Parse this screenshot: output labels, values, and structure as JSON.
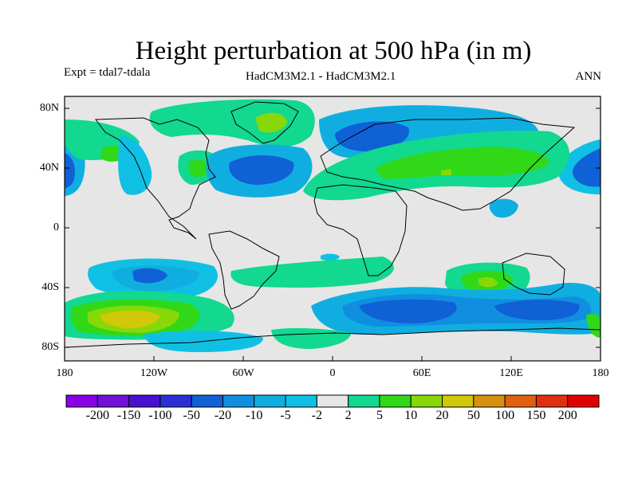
{
  "title": "Height perturbation at 500 hPa (in m)",
  "expt_label": "Expt = tdal7-tdala",
  "model_label": "HadCM3M2.1 - HadCM3M2.1",
  "season_label": "ANN",
  "lat_ticks": [
    "80N",
    "40N",
    "0",
    "40S",
    "80S"
  ],
  "lon_ticks": [
    "180",
    "120W",
    "60W",
    "0",
    "60E",
    "120E",
    "180"
  ],
  "colorbar": {
    "labels": [
      "-200",
      "-150",
      "-100",
      "-50",
      "-20",
      "-10",
      "-5",
      "-2",
      "2",
      "5",
      "10",
      "20",
      "50",
      "100",
      "150",
      "200"
    ],
    "colors": [
      "#8a00e6",
      "#7010d8",
      "#4a10d0",
      "#2a2fd6",
      "#1060d6",
      "#108ee0",
      "#10aee0",
      "#10c0e4",
      "#e6e6e6",
      "#12d890",
      "#30d818",
      "#88d808",
      "#d0c808",
      "#d89010",
      "#e06010",
      "#e03010",
      "#e00000"
    ]
  },
  "fill_colors": {
    "background": "#e6e6e6",
    "light_blue": "#10c0e4",
    "mid_blue": "#10aee0",
    "blue": "#108ee0",
    "dark_blue": "#1060d6",
    "green": "#12d890",
    "bright_green": "#30d818",
    "yellow_green": "#88d808",
    "yellow": "#d0c808"
  }
}
